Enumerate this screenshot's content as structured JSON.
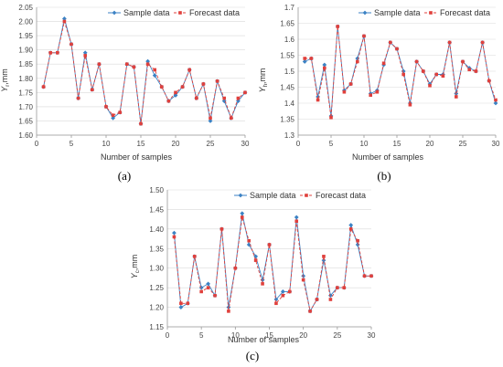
{
  "chart_data": [
    {
      "type": "line",
      "panel_label": "(a)",
      "xlabel": "Number of samples",
      "ylabel": "Y",
      "ylabel_sub": "r",
      "ylabel_unit": ",mm",
      "xlim": [
        0,
        30
      ],
      "ylim": [
        1.6,
        2.05
      ],
      "xticks": [
        0,
        5,
        10,
        15,
        20,
        25,
        30
      ],
      "yticks": [
        "1.60",
        "1.65",
        "1.70",
        "1.75",
        "1.80",
        "1.85",
        "1.90",
        "1.95",
        "2.00",
        "2.05"
      ],
      "legend_position": "top-right",
      "x": [
        1,
        2,
        3,
        4,
        5,
        6,
        7,
        8,
        9,
        10,
        11,
        12,
        13,
        14,
        15,
        16,
        17,
        18,
        19,
        20,
        21,
        22,
        23,
        24,
        25,
        26,
        27,
        28,
        29,
        30
      ],
      "series": [
        {
          "name": "Sample data",
          "color": "#3b82c4",
          "marker": "diamond",
          "values": [
            1.77,
            1.89,
            1.89,
            2.01,
            1.92,
            1.73,
            1.89,
            1.76,
            1.85,
            1.7,
            1.66,
            1.68,
            1.85,
            1.84,
            1.64,
            1.86,
            1.81,
            1.77,
            1.72,
            1.74,
            1.77,
            1.83,
            1.73,
            1.78,
            1.65,
            1.79,
            1.72,
            1.66,
            1.72,
            1.75
          ]
        },
        {
          "name": "Forecast data",
          "color": "#e0403c",
          "marker": "square",
          "values": [
            1.77,
            1.89,
            1.89,
            2.0,
            1.92,
            1.73,
            1.88,
            1.76,
            1.85,
            1.7,
            1.67,
            1.68,
            1.85,
            1.84,
            1.64,
            1.85,
            1.83,
            1.77,
            1.72,
            1.75,
            1.77,
            1.83,
            1.73,
            1.78,
            1.66,
            1.79,
            1.73,
            1.66,
            1.73,
            1.75
          ]
        }
      ]
    },
    {
      "type": "line",
      "panel_label": "(b)",
      "xlabel": "Number of samples",
      "ylabel": "Y",
      "ylabel_sub": "h",
      "ylabel_unit": ",mm",
      "xlim": [
        0,
        30
      ],
      "ylim": [
        1.3,
        1.7
      ],
      "xticks": [
        0,
        5,
        10,
        15,
        20,
        25,
        30
      ],
      "yticks": [
        "1.3",
        "1.35",
        "1.4",
        "1.45",
        "1.5",
        "1.55",
        "1.6",
        "1.65",
        "1.7"
      ],
      "legend_position": "top-right",
      "x": [
        1,
        2,
        3,
        4,
        5,
        6,
        7,
        8,
        9,
        10,
        11,
        12,
        13,
        14,
        15,
        16,
        17,
        18,
        19,
        20,
        21,
        22,
        23,
        24,
        25,
        26,
        27,
        28,
        29,
        30
      ],
      "series": [
        {
          "name": "Sample data",
          "color": "#3b82c4",
          "marker": "diamond",
          "values": [
            1.53,
            1.54,
            1.42,
            1.52,
            1.36,
            1.64,
            1.44,
            1.46,
            1.54,
            1.61,
            1.43,
            1.44,
            1.52,
            1.59,
            1.57,
            1.5,
            1.4,
            1.53,
            1.5,
            1.46,
            1.49,
            1.49,
            1.59,
            1.43,
            1.53,
            1.51,
            1.5,
            1.59,
            1.47,
            1.4
          ]
        },
        {
          "name": "Forecast data",
          "color": "#e0403c",
          "marker": "square",
          "values": [
            1.54,
            1.54,
            1.41,
            1.51,
            1.355,
            1.64,
            1.435,
            1.46,
            1.53,
            1.61,
            1.425,
            1.435,
            1.525,
            1.59,
            1.57,
            1.49,
            1.395,
            1.53,
            1.5,
            1.455,
            1.49,
            1.485,
            1.59,
            1.42,
            1.53,
            1.505,
            1.5,
            1.59,
            1.47,
            1.41
          ]
        }
      ]
    },
    {
      "type": "line",
      "panel_label": "(c)",
      "xlabel": "Number of samples",
      "ylabel": "Y",
      "ylabel_sub": "c",
      "ylabel_unit": ",mm",
      "xlim": [
        0,
        30
      ],
      "ylim": [
        1.15,
        1.5
      ],
      "xticks": [
        0,
        5,
        10,
        15,
        20,
        25,
        30
      ],
      "yticks": [
        "1.15",
        "1.20",
        "1.25",
        "1.30",
        "1.35",
        "1.40",
        "1.45",
        "1.50"
      ],
      "legend_position": "top-right",
      "x": [
        1,
        2,
        3,
        4,
        5,
        6,
        7,
        8,
        9,
        10,
        11,
        12,
        13,
        14,
        15,
        16,
        17,
        18,
        19,
        20,
        21,
        22,
        23,
        24,
        25,
        26,
        27,
        28,
        29,
        30
      ],
      "series": [
        {
          "name": "Sample data",
          "color": "#3b82c4",
          "marker": "diamond",
          "values": [
            1.39,
            1.2,
            1.21,
            1.33,
            1.25,
            1.26,
            1.23,
            1.4,
            1.2,
            1.3,
            1.44,
            1.36,
            1.33,
            1.27,
            1.36,
            1.22,
            1.24,
            1.24,
            1.43,
            1.28,
            1.19,
            1.22,
            1.32,
            1.23,
            1.25,
            1.25,
            1.41,
            1.36,
            1.28,
            1.28
          ]
        },
        {
          "name": "Forecast data",
          "color": "#e0403c",
          "marker": "square",
          "values": [
            1.38,
            1.21,
            1.21,
            1.33,
            1.24,
            1.25,
            1.23,
            1.4,
            1.19,
            1.3,
            1.43,
            1.37,
            1.32,
            1.26,
            1.36,
            1.21,
            1.23,
            1.24,
            1.42,
            1.27,
            1.19,
            1.22,
            1.33,
            1.22,
            1.25,
            1.25,
            1.4,
            1.37,
            1.28,
            1.28
          ]
        }
      ]
    }
  ]
}
